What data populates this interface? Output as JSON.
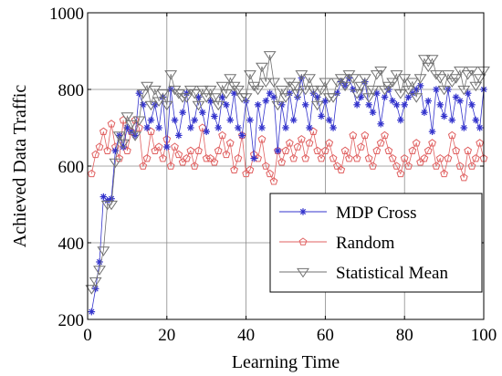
{
  "chart_data": {
    "type": "line",
    "xlabel": "Learning Time",
    "ylabel": "Achieved Data Traffic",
    "xlim": [
      0,
      100
    ],
    "ylim": [
      200,
      1000
    ],
    "xticks": [
      "0",
      "20",
      "40",
      "60",
      "80",
      "100"
    ],
    "yticks": [
      "200",
      "400",
      "600",
      "800",
      "1000"
    ],
    "grid": true,
    "legend_position": "bottom-right",
    "x": [
      1,
      2,
      3,
      4,
      5,
      6,
      7,
      8,
      9,
      10,
      11,
      12,
      13,
      14,
      15,
      16,
      17,
      18,
      19,
      20,
      21,
      22,
      23,
      24,
      25,
      26,
      27,
      28,
      29,
      30,
      31,
      32,
      33,
      34,
      35,
      36,
      37,
      38,
      39,
      40,
      41,
      42,
      43,
      44,
      45,
      46,
      47,
      48,
      49,
      50,
      51,
      52,
      53,
      54,
      55,
      56,
      57,
      58,
      59,
      60,
      61,
      62,
      63,
      64,
      65,
      66,
      67,
      68,
      69,
      70,
      71,
      72,
      73,
      74,
      75,
      76,
      77,
      78,
      79,
      80,
      81,
      82,
      83,
      84,
      85,
      86,
      87,
      88,
      89,
      90,
      91,
      92,
      93,
      94,
      95,
      96,
      97,
      98,
      99,
      100
    ],
    "series": [
      {
        "name": "MDP Cross",
        "color": "#3333cc",
        "marker": "asterisk",
        "values": [
          220,
          280,
          350,
          520,
          510,
          515,
          640,
          680,
          650,
          700,
          690,
          680,
          790,
          760,
          700,
          720,
          760,
          700,
          780,
          650,
          800,
          720,
          680,
          740,
          790,
          700,
          720,
          780,
          740,
          690,
          770,
          730,
          700,
          780,
          760,
          720,
          790,
          700,
          680,
          770,
          720,
          620,
          760,
          700,
          770,
          790,
          780,
          640,
          760,
          700,
          790,
          720,
          780,
          830,
          760,
          700,
          790,
          780,
          730,
          770,
          720,
          700,
          790,
          820,
          810,
          830,
          800,
          760,
          780,
          820,
          760,
          740,
          790,
          710,
          780,
          800,
          770,
          760,
          720,
          760,
          780,
          790,
          800,
          810,
          740,
          770,
          690,
          800,
          760,
          730,
          800,
          720,
          780,
          770,
          700,
          790,
          760,
          720,
          700,
          800
        ]
      },
      {
        "name": "Random",
        "color": "#e06060",
        "marker": "pentagon",
        "values": [
          580,
          630,
          650,
          690,
          640,
          710,
          650,
          620,
          720,
          640,
          690,
          720,
          700,
          600,
          620,
          690,
          640,
          650,
          620,
          670,
          600,
          650,
          630,
          610,
          620,
          640,
          600,
          640,
          700,
          620,
          620,
          610,
          640,
          680,
          630,
          660,
          590,
          620,
          680,
          580,
          590,
          630,
          620,
          670,
          600,
          580,
          560,
          640,
          610,
          640,
          660,
          620,
          650,
          670,
          620,
          660,
          690,
          640,
          620,
          640,
          660,
          620,
          600,
          590,
          640,
          620,
          680,
          620,
          650,
          680,
          620,
          600,
          640,
          660,
          680,
          640,
          620,
          600,
          580,
          620,
          600,
          640,
          660,
          610,
          620,
          640,
          660,
          600,
          620,
          580,
          620,
          680,
          640,
          600,
          570,
          640,
          600,
          620,
          660,
          620
        ]
      },
      {
        "name": "Statistical Mean",
        "color": "#707070",
        "marker": "triangle-down",
        "values": [
          280,
          300,
          330,
          380,
          500,
          500,
          610,
          680,
          660,
          730,
          710,
          680,
          720,
          790,
          810,
          760,
          800,
          770,
          790,
          760,
          840,
          800,
          790,
          780,
          780,
          800,
          790,
          760,
          800,
          780,
          800,
          780,
          760,
          810,
          790,
          830,
          810,
          800,
          780,
          780,
          840,
          810,
          800,
          860,
          820,
          890,
          820,
          760,
          800,
          780,
          820,
          810,
          790,
          840,
          800,
          830,
          800,
          760,
          800,
          820,
          780,
          780,
          820,
          830,
          810,
          840,
          830,
          790,
          810,
          830,
          780,
          800,
          840,
          850,
          800,
          810,
          820,
          840,
          790,
          830,
          800,
          820,
          780,
          830,
          880,
          860,
          880,
          840,
          830,
          800,
          840,
          820,
          830,
          850,
          800,
          840,
          850,
          810,
          830,
          850
        ]
      }
    ]
  }
}
